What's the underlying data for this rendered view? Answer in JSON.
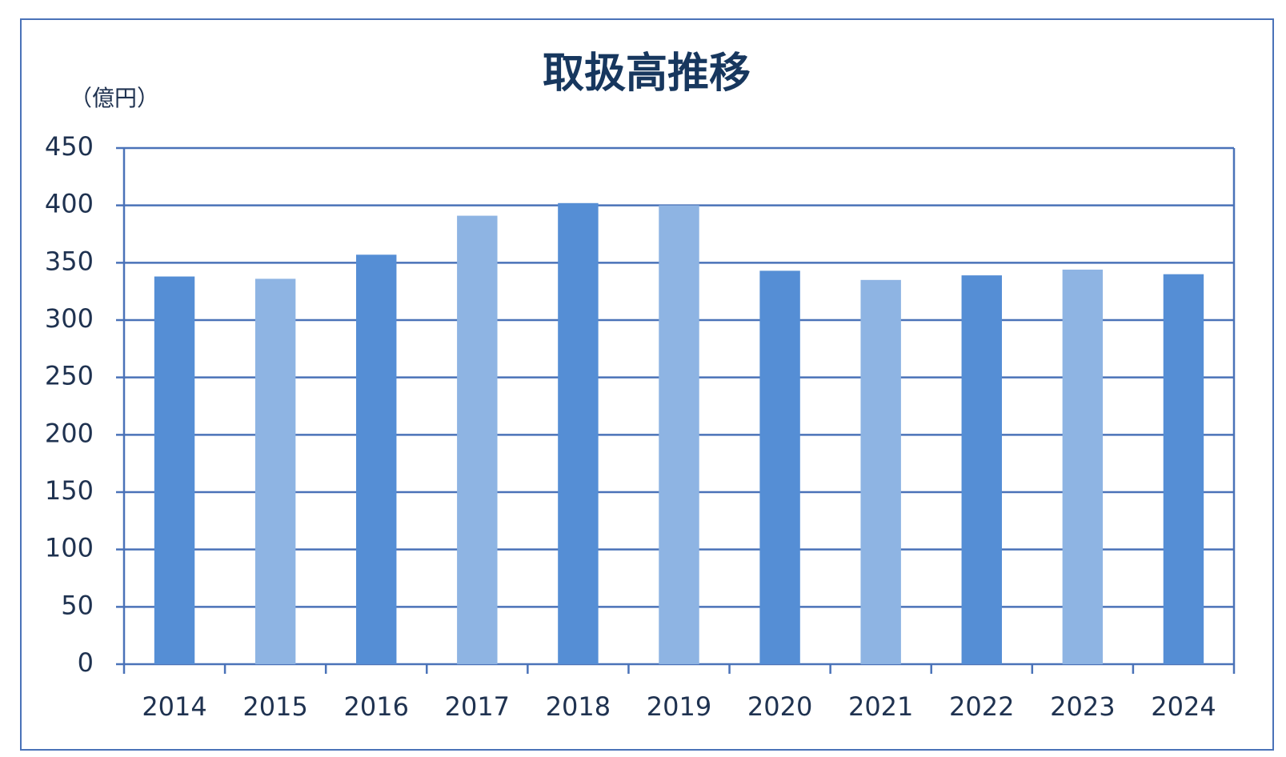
{
  "chart_data": {
    "type": "bar",
    "title": "取扱高推移",
    "unit_label": "（億円）",
    "categories": [
      "2014",
      "2015",
      "2016",
      "2017",
      "2018",
      "2019",
      "2020",
      "2021",
      "2022",
      "2023",
      "2024"
    ],
    "values": [
      338,
      336,
      357,
      391,
      402,
      400,
      343,
      335,
      339,
      344,
      340
    ],
    "colors": [
      "#558ed5",
      "#8eb4e3",
      "#558ed5",
      "#8eb4e3",
      "#558ed5",
      "#8eb4e3",
      "#558ed5",
      "#8eb4e3",
      "#558ed5",
      "#8eb4e3",
      "#558ed5"
    ],
    "ylim": [
      0,
      450
    ],
    "yticks": [
      0,
      50,
      100,
      150,
      200,
      250,
      300,
      350,
      400,
      450
    ],
    "grid": true
  }
}
